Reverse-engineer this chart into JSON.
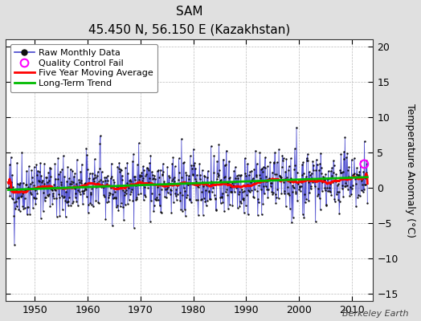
{
  "title": "SAM",
  "subtitle": "45.450 N, 56.150 E (Kazakhstan)",
  "ylabel": "Temperature Anomaly (°C)",
  "watermark": "Berkeley Earth",
  "start_year": 1945,
  "end_year": 2013,
  "xlim": [
    1944.5,
    2014.0
  ],
  "ylim": [
    -16,
    21
  ],
  "yticks": [
    -15,
    -10,
    -5,
    0,
    5,
    10,
    15,
    20
  ],
  "bg_color": "#e0e0e0",
  "plot_bg_color": "#ffffff",
  "raw_line_color": "#4444cc",
  "raw_dot_color": "#111111",
  "moving_avg_color": "#ff0000",
  "trend_color": "#00bb00",
  "qc_fail_color": "#ff00ff",
  "seed": 42
}
